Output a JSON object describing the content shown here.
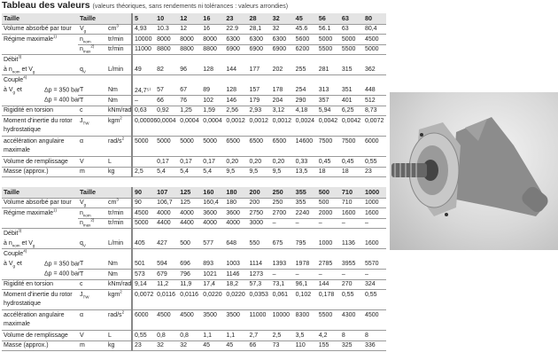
{
  "title": {
    "main": "Tableau des valeurs",
    "sub": "(valeurs théoriques, sans rendements ni tolérances : valeurs arrondies)"
  },
  "tables": [
    {
      "rows": [
        {
          "cls": "hdr bb",
          "label": [
            "Taille"
          ],
          "sym": [
            "Taille"
          ],
          "unit": [],
          "values": [
            "5",
            "10",
            "12",
            "16",
            "23",
            "28",
            "32",
            "45",
            "56",
            "63",
            "80"
          ]
        },
        {
          "cls": "bb",
          "label": [
            "Volume absorbé par tour"
          ],
          "sym": [
            "V",
            {
              "sub": "g"
            }
          ],
          "unit": [
            "cm",
            {
              "sup": "3"
            }
          ],
          "values": [
            "4,93",
            "10.3",
            "12",
            "16",
            "22.9",
            "28,1",
            "32",
            "45.6",
            "56.1",
            "63",
            "80,4"
          ]
        },
        {
          "cls": "bbr",
          "label": [
            "Régime maximale",
            {
              "sup": "1)"
            }
          ],
          "sym": [
            "n",
            {
              "sub": "nom"
            }
          ],
          "unit": [
            "tr/min"
          ],
          "values": [
            "10000",
            "8000",
            "8000",
            "8000",
            "6300",
            "6300",
            "6300",
            "5600",
            "5000",
            "5000",
            "4500"
          ]
        },
        {
          "cls": "bb",
          "label": [],
          "sym": [
            "n",
            {
              "sub": "max"
            },
            {
              "sup": "2)"
            }
          ],
          "unit": [
            "tr/min"
          ],
          "values": [
            "11000",
            "8800",
            "8800",
            "8800",
            "6900",
            "6900",
            "6900",
            "6200",
            "5500",
            "5500",
            "5000"
          ]
        },
        {
          "cls": "",
          "label": [
            "Débit",
            {
              "sup": "3)"
            }
          ],
          "sym": [],
          "unit": [],
          "values": []
        },
        {
          "cls": "bb",
          "label": [
            "  à n",
            {
              "sub": "nom"
            },
            " et V",
            {
              "sub": "g"
            }
          ],
          "sym": [
            "q",
            {
              "sub": "V"
            }
          ],
          "unit": [
            "L/min"
          ],
          "values": [
            "49",
            "82",
            "96",
            "128",
            "144",
            "177",
            "202",
            "255",
            "281",
            "315",
            "362"
          ]
        },
        {
          "cls": "",
          "label": [
            "Couple",
            {
              "sup": "4)"
            }
          ],
          "sym": [],
          "unit": [],
          "values": []
        },
        {
          "cls": "bbr",
          "label": [
            "  à V",
            {
              "sub": "g"
            },
            " et"
          ],
          "cond": [
            "Δp = 350 bar"
          ],
          "sym": [
            "T"
          ],
          "unit": [
            "Nm"
          ],
          "values": [
            "24,7⁵⁾",
            "57",
            "67",
            "89",
            "128",
            "157",
            "178",
            "254",
            "313",
            "351",
            "448"
          ]
        },
        {
          "cls": "bb",
          "label": [],
          "cond": [
            "Δp = 400 bar"
          ],
          "sym": [
            "T"
          ],
          "unit": [
            "Nm"
          ],
          "values": [
            "–",
            "66",
            "76",
            "102",
            "146",
            "179",
            "204",
            "290",
            "357",
            "401",
            "512"
          ]
        },
        {
          "cls": "bb",
          "label": [
            "Rigidité en torsion"
          ],
          "sym": [
            "c"
          ],
          "unit": [
            "kNm/rad"
          ],
          "values": [
            "0,63",
            "0,92",
            "1,25",
            "1,59",
            "2,56",
            "2,93",
            "3,12",
            "4,18",
            "5,94",
            "6,25",
            "8,73"
          ]
        },
        {
          "cls": "bb tall",
          "label": [
            "Moment d'inertie du rotor hydrostatique"
          ],
          "sym": [
            "J",
            {
              "sub": "TW"
            }
          ],
          "unit": [
            "kgm",
            {
              "sup": "2"
            }
          ],
          "values": [
            "0,00006",
            "0,0004",
            "0,0004",
            "0,0004",
            "0,0012",
            "0,0012",
            "0,0012",
            "0,0024",
            "0,0042",
            "0,0042",
            "0,0072"
          ]
        },
        {
          "cls": "bb tall",
          "label": [
            "accélération angulaire maximale"
          ],
          "sym": [
            "α"
          ],
          "unit": [
            "rad/s",
            {
              "sup": "2"
            }
          ],
          "values": [
            "5000",
            "5000",
            "5000",
            "5000",
            "6500",
            "6500",
            "6500",
            "14600",
            "7500",
            "7500",
            "6000"
          ]
        },
        {
          "cls": "bb",
          "label": [
            "Volume de remplissage"
          ],
          "sym": [
            "V"
          ],
          "unit": [
            "L"
          ],
          "values": [
            "",
            "0,17",
            "0,17",
            "0,17",
            "0,20",
            "0,20",
            "0,20",
            "0,33",
            "0,45",
            "0,45",
            "0,55"
          ]
        },
        {
          "cls": "bb",
          "label": [
            "Masse (approx.)"
          ],
          "sym": [
            "m"
          ],
          "unit": [
            "kg"
          ],
          "values": [
            "2,5",
            "5,4",
            "5,4",
            "5,4",
            "9,5",
            "9,5",
            "9,5",
            "13,5",
            "18",
            "18",
            "23"
          ]
        }
      ]
    },
    {
      "rows": [
        {
          "cls": "hdr bb",
          "label": [
            "Taille"
          ],
          "sym": [
            "Taille"
          ],
          "unit": [],
          "values": [
            "90",
            "107",
            "125",
            "160",
            "180",
            "200",
            "250",
            "355",
            "500",
            "710",
            "1000"
          ]
        },
        {
          "cls": "bb",
          "label": [
            "Volume absorbé par tour"
          ],
          "sym": [
            "V",
            {
              "sub": "g"
            }
          ],
          "unit": [
            "cm",
            {
              "sup": "3"
            }
          ],
          "values": [
            "90",
            "106,7",
            "125",
            "160,4",
            "180",
            "200",
            "250",
            "355",
            "500",
            "710",
            "1000"
          ]
        },
        {
          "cls": "bbr",
          "label": [
            "Régime maximale",
            {
              "sup": "1)"
            }
          ],
          "sym": [
            "n",
            {
              "sub": "nom"
            }
          ],
          "unit": [
            "tr/min"
          ],
          "values": [
            "4500",
            "4000",
            "4000",
            "3600",
            "3600",
            "2750",
            "2700",
            "2240",
            "2000",
            "1600",
            "1600"
          ]
        },
        {
          "cls": "bb",
          "label": [],
          "sym": [
            "n",
            {
              "sub": "max"
            },
            {
              "sup": "2)"
            }
          ],
          "unit": [
            "tr/min"
          ],
          "values": [
            "5000",
            "4400",
            "4400",
            "4000",
            "4000",
            "3000",
            "–",
            "–",
            "–",
            "–",
            "–"
          ]
        },
        {
          "cls": "",
          "label": [
            "Débit",
            {
              "sup": "3)"
            }
          ],
          "sym": [],
          "unit": [],
          "values": []
        },
        {
          "cls": "bb",
          "label": [
            "  à n",
            {
              "sub": "nom"
            },
            " et V",
            {
              "sub": "g"
            }
          ],
          "sym": [
            "q",
            {
              "sub": "V"
            }
          ],
          "unit": [
            "L/min"
          ],
          "values": [
            "405",
            "427",
            "500",
            "577",
            "648",
            "550",
            "675",
            "795",
            "1000",
            "1136",
            "1600"
          ]
        },
        {
          "cls": "",
          "label": [
            "Couple",
            {
              "sup": "4)"
            }
          ],
          "sym": [],
          "unit": [],
          "values": []
        },
        {
          "cls": "bbr",
          "label": [
            "  à V",
            {
              "sub": "g"
            },
            " et"
          ],
          "cond": [
            "Δp = 350 bar"
          ],
          "sym": [
            "T"
          ],
          "unit": [
            "Nm"
          ],
          "values": [
            "501",
            "594",
            "696",
            "893",
            "1003",
            "1114",
            "1393",
            "1978",
            "2785",
            "3955",
            "5570"
          ]
        },
        {
          "cls": "bb",
          "label": [],
          "cond": [
            "Δp = 400 bar"
          ],
          "sym": [
            "T"
          ],
          "unit": [
            "Nm"
          ],
          "values": [
            "573",
            "679",
            "796",
            "1021",
            "1146",
            "1273",
            "–",
            "–",
            "–",
            "–",
            "–"
          ]
        },
        {
          "cls": "bb",
          "label": [
            "Rigidité en torsion"
          ],
          "sym": [
            "c"
          ],
          "unit": [
            "kNm/rad"
          ],
          "values": [
            "9,14",
            "11,2",
            "11,9",
            "17,4",
            "18,2",
            "57,3",
            "73,1",
            "96,1",
            "144",
            "270",
            "324"
          ]
        },
        {
          "cls": "bb tall",
          "label": [
            "Moment d'inertie du rotor hydrostatique"
          ],
          "sym": [
            "J",
            {
              "sub": "TW"
            }
          ],
          "unit": [
            "kgm",
            {
              "sup": "2"
            }
          ],
          "values": [
            "0,0072",
            "0,0116",
            "0,0116",
            "0,0220",
            "0,0220",
            "0,0353",
            "0,061",
            "0,102",
            "0,178",
            "0,55",
            "0,55"
          ]
        },
        {
          "cls": "bb tall",
          "label": [
            "accélération angulaire maximale"
          ],
          "sym": [
            "α"
          ],
          "unit": [
            "rad/s",
            {
              "sup": "2"
            }
          ],
          "values": [
            "6000",
            "4500",
            "4500",
            "3500",
            "3500",
            "11000",
            "10000",
            "8300",
            "5500",
            "4300",
            "4500"
          ]
        },
        {
          "cls": "bb",
          "label": [
            "Volume de remplissage"
          ],
          "sym": [
            "V"
          ],
          "unit": [
            "L"
          ],
          "values": [
            "0,55",
            "0,8",
            "0,8",
            "1,1",
            "1,1",
            "2,7",
            "2,5",
            "3,5",
            "4,2",
            "8",
            "8"
          ]
        },
        {
          "cls": "bb",
          "label": [
            "Masse (approx.)"
          ],
          "sym": [
            "m"
          ],
          "unit": [
            "kg"
          ],
          "values": [
            "23",
            "32",
            "32",
            "45",
            "45",
            "66",
            "73",
            "110",
            "155",
            "325",
            "336"
          ]
        }
      ]
    }
  ],
  "photo": {
    "subject": "axial-piston-motor-icon",
    "colors": {
      "body": "#8c8c8c",
      "flange": "#b0b0b0",
      "background": "#d8d8d8"
    }
  }
}
